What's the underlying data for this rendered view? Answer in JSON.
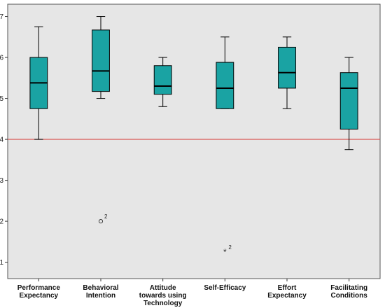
{
  "chart_data": {
    "type": "box",
    "ylim": [
      0.6,
      7.3
    ],
    "y_ticks": [
      1,
      2,
      3,
      4,
      5,
      6,
      7
    ],
    "grid": false,
    "reference_line": {
      "y": 4,
      "color": "#d9534f"
    },
    "colors": {
      "plot_background": "#e6e6e6",
      "box_fill": "#1aa3a3",
      "box_stroke": "#000000"
    },
    "categories": [
      {
        "label": [
          "Performance",
          "Expectancy"
        ],
        "whisker_low": 4.0,
        "q1": 4.75,
        "median": 5.38,
        "q3": 6.0,
        "whisker_high": 6.75,
        "outliers": []
      },
      {
        "label": [
          "Behavioral",
          "Intention"
        ],
        "whisker_low": 5.0,
        "q1": 5.17,
        "median": 5.67,
        "q3": 6.67,
        "whisker_high": 7.0,
        "outliers": [
          {
            "value": 2.0,
            "marker": "circle",
            "label": "2"
          }
        ]
      },
      {
        "label": [
          "Attitude",
          "towards using",
          "Technology"
        ],
        "whisker_low": 4.8,
        "q1": 5.1,
        "median": 5.3,
        "q3": 5.8,
        "whisker_high": 6.0,
        "outliers": []
      },
      {
        "label": [
          "Self-Efficacy"
        ],
        "whisker_low": 4.75,
        "q1": 4.75,
        "median": 5.25,
        "q3": 5.88,
        "whisker_high": 6.5,
        "outliers": [
          {
            "value": 1.25,
            "marker": "star",
            "label": "2"
          }
        ]
      },
      {
        "label": [
          "Effort",
          "Expectancy"
        ],
        "whisker_low": 4.75,
        "q1": 5.25,
        "median": 5.63,
        "q3": 6.25,
        "whisker_high": 6.5,
        "outliers": []
      },
      {
        "label": [
          "Facilitating",
          "Conditions"
        ],
        "whisker_low": 3.75,
        "q1": 4.25,
        "median": 5.25,
        "q3": 5.63,
        "whisker_high": 6.0,
        "outliers": []
      }
    ]
  }
}
